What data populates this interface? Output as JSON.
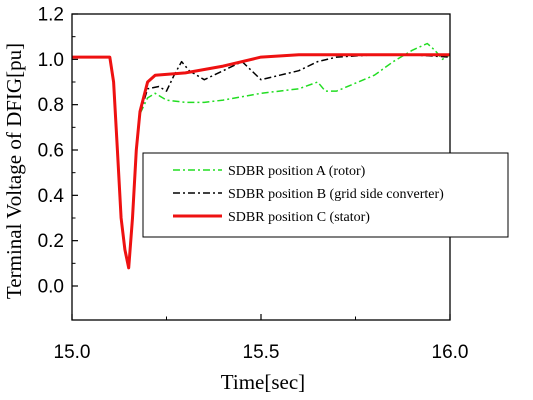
{
  "chart_data": {
    "type": "line",
    "title": "",
    "xlabel": "Time[sec]",
    "ylabel": "Terminal Voltage of DFIG[pu]",
    "xlim": [
      15.0,
      16.0
    ],
    "ylim": [
      -0.15,
      1.2
    ],
    "xticks": [
      "15.0",
      "15.5",
      "16.0"
    ],
    "yticks": [
      "0.0",
      "0.2",
      "0.4",
      "0.6",
      "0.8",
      "1.0",
      "1.2"
    ],
    "legend_position": "center-right",
    "grid": false,
    "series": [
      {
        "name": "SDBR position A (rotor)",
        "color": "#22dd22",
        "dash": "dash-dot",
        "points": [
          [
            15.0,
            1.01
          ],
          [
            15.1,
            1.01
          ],
          [
            15.11,
            0.9
          ],
          [
            15.12,
            0.6
          ],
          [
            15.13,
            0.3
          ],
          [
            15.14,
            0.16
          ],
          [
            15.15,
            0.08
          ],
          [
            15.16,
            0.3
          ],
          [
            15.17,
            0.6
          ],
          [
            15.18,
            0.76
          ],
          [
            15.2,
            0.83
          ],
          [
            15.22,
            0.85
          ],
          [
            15.25,
            0.82
          ],
          [
            15.3,
            0.81
          ],
          [
            15.35,
            0.81
          ],
          [
            15.4,
            0.82
          ],
          [
            15.5,
            0.85
          ],
          [
            15.6,
            0.87
          ],
          [
            15.65,
            0.9
          ],
          [
            15.67,
            0.86
          ],
          [
            15.7,
            0.86
          ],
          [
            15.8,
            0.93
          ],
          [
            15.85,
            0.99
          ],
          [
            15.9,
            1.04
          ],
          [
            15.94,
            1.07
          ],
          [
            15.96,
            1.04
          ],
          [
            15.98,
            1.0
          ],
          [
            16.0,
            1.02
          ]
        ]
      },
      {
        "name": "SDBR position B (grid side converter)",
        "color": "#000000",
        "dash": "dash-dot",
        "points": [
          [
            15.0,
            1.01
          ],
          [
            15.1,
            1.01
          ],
          [
            15.11,
            0.9
          ],
          [
            15.12,
            0.6
          ],
          [
            15.13,
            0.3
          ],
          [
            15.14,
            0.16
          ],
          [
            15.15,
            0.08
          ],
          [
            15.16,
            0.3
          ],
          [
            15.17,
            0.6
          ],
          [
            15.18,
            0.76
          ],
          [
            15.2,
            0.87
          ],
          [
            15.23,
            0.88
          ],
          [
            15.25,
            0.86
          ],
          [
            15.27,
            0.93
          ],
          [
            15.29,
            0.99
          ],
          [
            15.31,
            0.95
          ],
          [
            15.35,
            0.91
          ],
          [
            15.4,
            0.95
          ],
          [
            15.45,
            0.99
          ],
          [
            15.5,
            0.91
          ],
          [
            15.55,
            0.93
          ],
          [
            15.6,
            0.95
          ],
          [
            15.65,
            0.99
          ],
          [
            15.7,
            1.01
          ],
          [
            15.8,
            1.02
          ],
          [
            15.9,
            1.02
          ],
          [
            16.0,
            1.01
          ]
        ]
      },
      {
        "name": "SDBR position C (stator)",
        "color": "#ee1111",
        "dash": "solid",
        "points": [
          [
            15.0,
            1.01
          ],
          [
            15.1,
            1.01
          ],
          [
            15.11,
            0.9
          ],
          [
            15.12,
            0.6
          ],
          [
            15.13,
            0.3
          ],
          [
            15.14,
            0.16
          ],
          [
            15.15,
            0.08
          ],
          [
            15.16,
            0.3
          ],
          [
            15.17,
            0.6
          ],
          [
            15.18,
            0.77
          ],
          [
            15.2,
            0.9
          ],
          [
            15.22,
            0.93
          ],
          [
            15.3,
            0.94
          ],
          [
            15.4,
            0.97
          ],
          [
            15.5,
            1.01
          ],
          [
            15.6,
            1.02
          ],
          [
            15.7,
            1.02
          ],
          [
            15.8,
            1.02
          ],
          [
            15.9,
            1.02
          ],
          [
            16.0,
            1.02
          ]
        ]
      }
    ]
  }
}
